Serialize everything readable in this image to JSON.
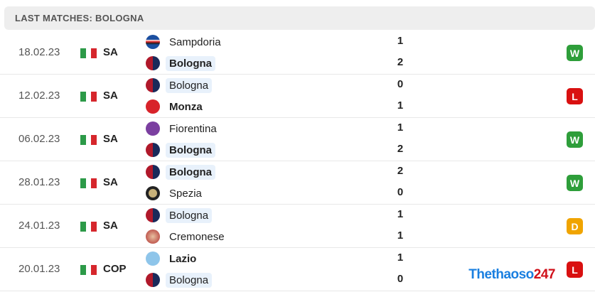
{
  "header": {
    "title": "LAST MATCHES: BOLOGNA"
  },
  "colors": {
    "W": "#2e9e3a",
    "L": "#d91010",
    "D": "#f0a400",
    "highlight": "#e8f1fb"
  },
  "matches": [
    {
      "date": "18.02.23",
      "competition": "SA",
      "flag": "italy",
      "home": {
        "name": "Sampdoria",
        "score": "1",
        "logo": "sampdoria-crest"
      },
      "away": {
        "name": "Bologna",
        "score": "2",
        "logo": "bologna-crest"
      },
      "winner": "away",
      "highlight": "away",
      "result": "W"
    },
    {
      "date": "12.02.23",
      "competition": "SA",
      "flag": "italy",
      "home": {
        "name": "Bologna",
        "score": "0",
        "logo": "bologna-crest"
      },
      "away": {
        "name": "Monza",
        "score": "1",
        "logo": "monza-crest"
      },
      "winner": "away",
      "highlight": "home",
      "result": "L"
    },
    {
      "date": "06.02.23",
      "competition": "SA",
      "flag": "italy",
      "home": {
        "name": "Fiorentina",
        "score": "1",
        "logo": "fiorentina-crest"
      },
      "away": {
        "name": "Bologna",
        "score": "2",
        "logo": "bologna-crest"
      },
      "winner": "away",
      "highlight": "away",
      "result": "W"
    },
    {
      "date": "28.01.23",
      "competition": "SA",
      "flag": "italy",
      "home": {
        "name": "Bologna",
        "score": "2",
        "logo": "bologna-crest"
      },
      "away": {
        "name": "Spezia",
        "score": "0",
        "logo": "spezia-crest"
      },
      "winner": "home",
      "highlight": "home",
      "result": "W"
    },
    {
      "date": "24.01.23",
      "competition": "SA",
      "flag": "italy",
      "home": {
        "name": "Bologna",
        "score": "1",
        "logo": "bologna-crest"
      },
      "away": {
        "name": "Cremonese",
        "score": "1",
        "logo": "cremonese-crest"
      },
      "winner": "none",
      "highlight": "home",
      "result": "D"
    },
    {
      "date": "20.01.23",
      "competition": "COP",
      "flag": "italy",
      "home": {
        "name": "Lazio",
        "score": "1",
        "logo": "lazio-crest"
      },
      "away": {
        "name": "Bologna",
        "score": "0",
        "logo": "bologna-crest"
      },
      "winner": "home",
      "highlight": "away",
      "result": "L"
    }
  ],
  "watermark": {
    "text": "Thethaoso",
    "suffix": "247"
  }
}
